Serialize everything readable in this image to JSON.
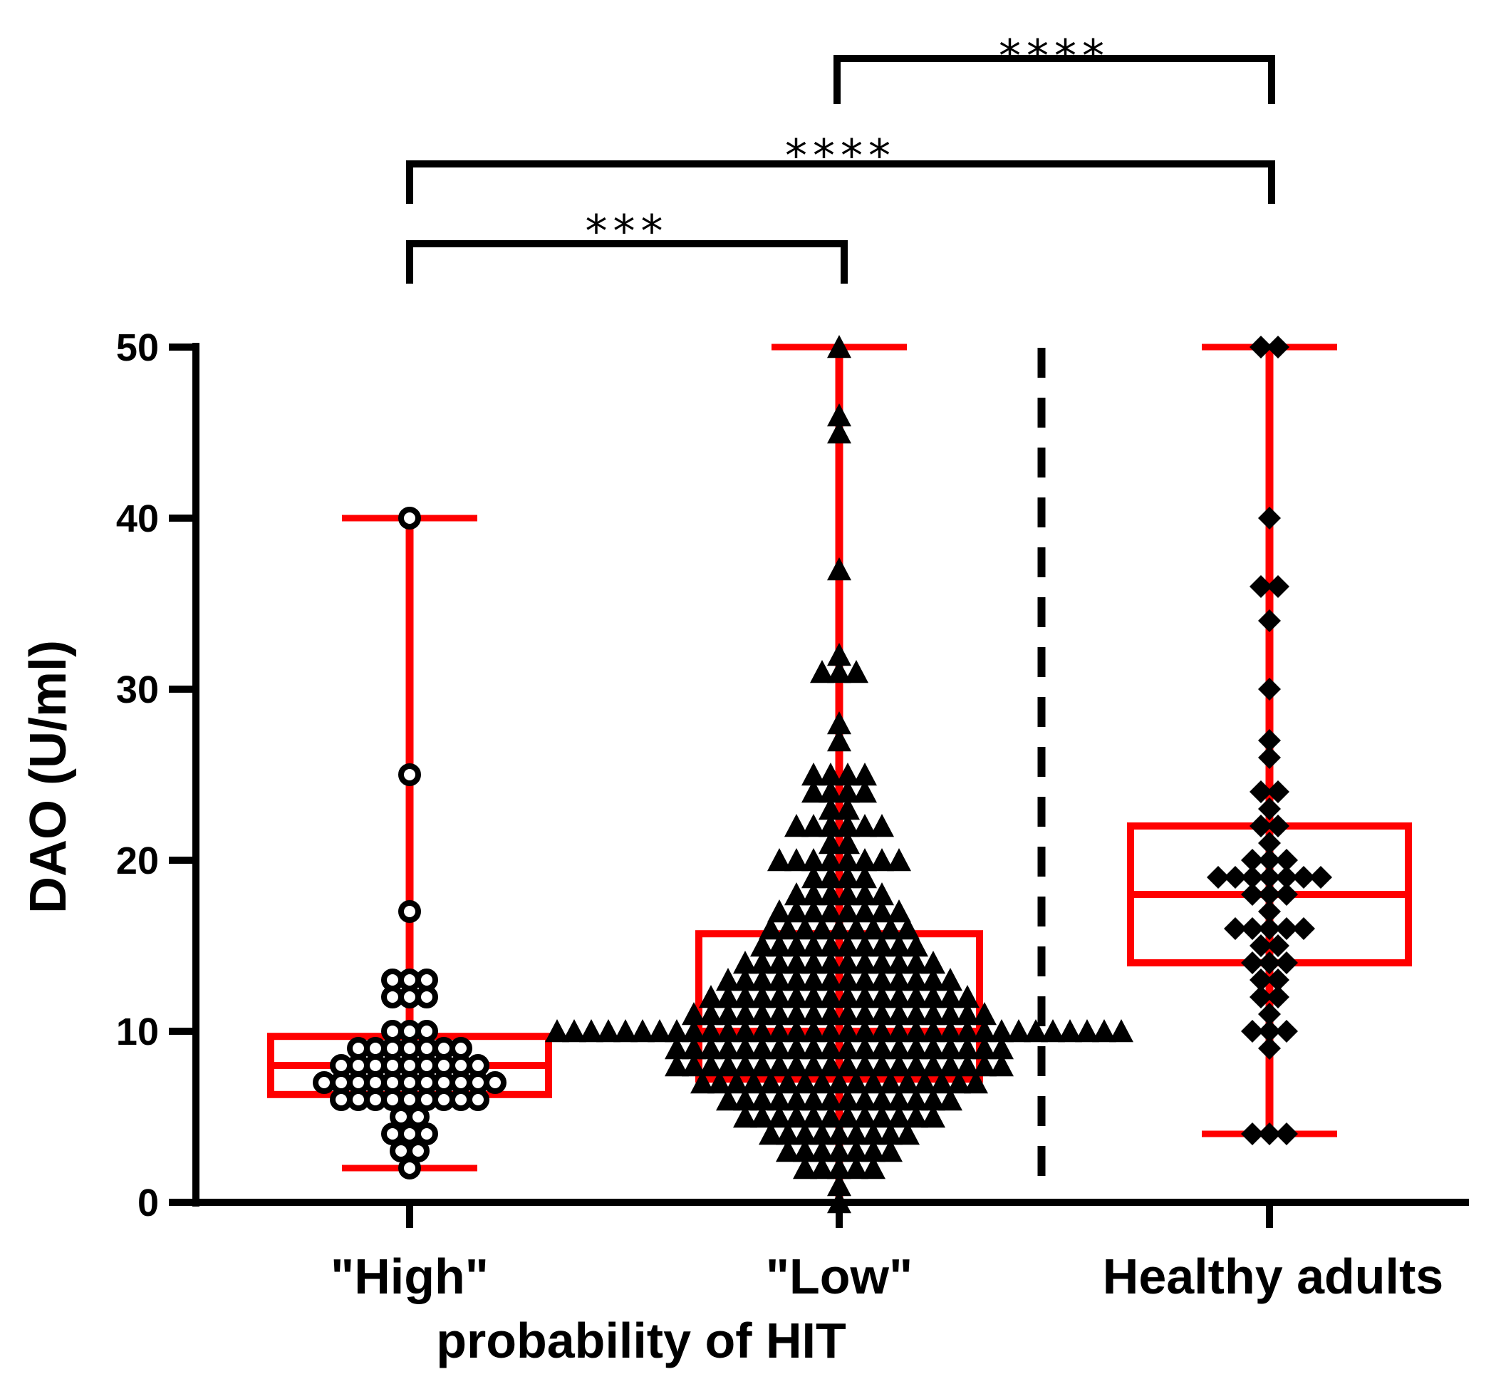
{
  "chart_data": {
    "type": "box-scatter",
    "title": "",
    "ylabel": "DAO (U/ml)",
    "xlabel": "probability of HIT",
    "ylim": [
      0,
      50
    ],
    "yticks": [
      "0",
      "10",
      "20",
      "30",
      "40",
      "50"
    ],
    "colors": {
      "box": "#ff0000",
      "points": "#000000",
      "axis": "#000000"
    },
    "groups": [
      {
        "name": "\"High\"",
        "marker": "circle",
        "box": {
          "min": 2,
          "q1": 6.3,
          "median": 8,
          "q3": 9.7,
          "max": 40
        },
        "values": [
          40,
          25,
          17,
          13,
          13,
          13,
          12,
          12,
          12,
          10,
          10,
          10,
          9,
          9,
          9,
          9,
          9,
          9,
          9,
          8,
          8,
          8,
          8,
          8,
          8,
          8,
          8,
          8,
          7,
          7,
          7,
          7,
          7,
          7,
          7,
          7,
          7,
          7,
          7,
          6,
          6,
          6,
          6,
          6,
          6,
          6,
          6,
          6,
          5,
          5,
          4,
          4,
          4,
          3,
          3,
          2
        ]
      },
      {
        "name": "\"Low\"",
        "marker": "triangle",
        "box": {
          "min": 0,
          "q1": 7.2,
          "median": 10,
          "q3": 15.7,
          "max": 50
        },
        "values": [
          50,
          46,
          45,
          37,
          32,
          31,
          31,
          31,
          28,
          27,
          25,
          25,
          25,
          25,
          24,
          24,
          24,
          24,
          23,
          23,
          22,
          22,
          22,
          22,
          22,
          22,
          21,
          21,
          20,
          20,
          20,
          20,
          20,
          20,
          20,
          20,
          19,
          19,
          19,
          19,
          18,
          18,
          18,
          18,
          18,
          18,
          17,
          17,
          17,
          17,
          17,
          17,
          17,
          17,
          16,
          16,
          16,
          16,
          16,
          16,
          16,
          16,
          16,
          15,
          15,
          15,
          15,
          15,
          15,
          15,
          15,
          15,
          15,
          14,
          14,
          14,
          14,
          14,
          14,
          14,
          14,
          14,
          14,
          14,
          14,
          13,
          13,
          13,
          13,
          13,
          13,
          13,
          13,
          13,
          13,
          13,
          13,
          13,
          13,
          12,
          12,
          12,
          12,
          12,
          12,
          12,
          12,
          12,
          12,
          12,
          12,
          12,
          12,
          12,
          12,
          11,
          11,
          11,
          11,
          11,
          11,
          11,
          11,
          11,
          11,
          11,
          11,
          11,
          11,
          11,
          11,
          11,
          11,
          10,
          10,
          10,
          10,
          10,
          10,
          10,
          10,
          10,
          10,
          10,
          10,
          10,
          10,
          10,
          10,
          10,
          10,
          10,
          10,
          10,
          10,
          10,
          10,
          10,
          10,
          10,
          10,
          10,
          10,
          10,
          10,
          10,
          10,
          9,
          9,
          9,
          9,
          9,
          9,
          9,
          9,
          9,
          9,
          9,
          9,
          9,
          9,
          9,
          9,
          9,
          9,
          9,
          9,
          8,
          8,
          8,
          8,
          8,
          8,
          8,
          8,
          8,
          8,
          8,
          8,
          8,
          8,
          8,
          8,
          8,
          8,
          8,
          8,
          7,
          7,
          7,
          7,
          7,
          7,
          7,
          7,
          7,
          7,
          7,
          7,
          7,
          7,
          7,
          7,
          7,
          6,
          6,
          6,
          6,
          6,
          6,
          6,
          6,
          6,
          6,
          6,
          6,
          6,
          6,
          5,
          5,
          5,
          5,
          5,
          5,
          5,
          5,
          5,
          5,
          5,
          5,
          4,
          4,
          4,
          4,
          4,
          4,
          4,
          4,
          4,
          3,
          3,
          3,
          3,
          3,
          3,
          3,
          2,
          2,
          2,
          2,
          2,
          1,
          0
        ]
      },
      {
        "name": "Healthy adults",
        "marker": "diamond",
        "box": {
          "min": 4,
          "q1": 14,
          "median": 18,
          "q3": 22,
          "max": 50
        },
        "values": [
          50,
          50,
          40,
          36,
          36,
          34,
          30,
          27,
          26,
          24,
          24,
          23,
          22,
          22,
          21,
          20,
          20,
          20,
          19,
          19,
          19,
          19,
          19,
          19,
          19,
          18,
          18,
          18,
          17,
          16,
          16,
          16,
          16,
          16,
          15,
          15,
          14,
          14,
          14,
          13,
          13,
          12,
          12,
          11,
          10,
          10,
          10,
          9,
          4,
          4,
          4
        ]
      }
    ],
    "comparisons": [
      {
        "from": 0,
        "to": 1,
        "label": "***"
      },
      {
        "from": 0,
        "to": 2,
        "label": "****"
      },
      {
        "from": 1,
        "to": 2,
        "label": "****"
      }
    ],
    "separator": "dashed line between \"Low\" and Healthy adults"
  }
}
